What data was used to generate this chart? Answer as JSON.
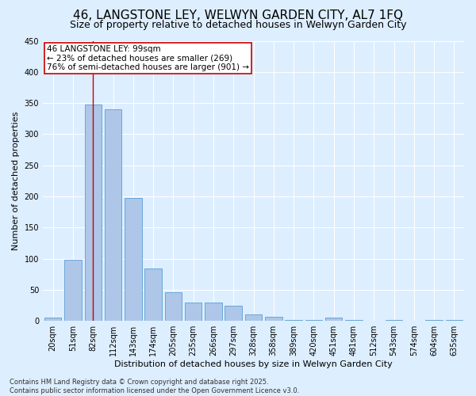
{
  "title": "46, LANGSTONE LEY, WELWYN GARDEN CITY, AL7 1FQ",
  "subtitle": "Size of property relative to detached houses in Welwyn Garden City",
  "xlabel": "Distribution of detached houses by size in Welwyn Garden City",
  "ylabel": "Number of detached properties",
  "categories": [
    "20sqm",
    "51sqm",
    "82sqm",
    "112sqm",
    "143sqm",
    "174sqm",
    "205sqm",
    "235sqm",
    "266sqm",
    "297sqm",
    "328sqm",
    "358sqm",
    "389sqm",
    "420sqm",
    "451sqm",
    "481sqm",
    "512sqm",
    "543sqm",
    "574sqm",
    "604sqm",
    "635sqm"
  ],
  "values": [
    5,
    98,
    348,
    340,
    197,
    84,
    46,
    29,
    29,
    24,
    10,
    7,
    2,
    2,
    5,
    1,
    0,
    2,
    0,
    1,
    1
  ],
  "bar_color": "#aec6e8",
  "bar_edge_color": "#5a9fd4",
  "background_color": "#ddeeff",
  "grid_color": "#ffffff",
  "annotation_text_line1": "46 LANGSTONE LEY: 99sqm",
  "annotation_text_line2": "← 23% of detached houses are smaller (269)",
  "annotation_text_line3": "76% of semi-detached houses are larger (901) →",
  "annotation_box_color": "#ffffff",
  "annotation_box_edge_color": "#cc0000",
  "red_line_color": "#cc0000",
  "ylim": [
    0,
    450
  ],
  "yticks": [
    0,
    50,
    100,
    150,
    200,
    250,
    300,
    350,
    400,
    450
  ],
  "footer": "Contains HM Land Registry data © Crown copyright and database right 2025.\nContains public sector information licensed under the Open Government Licence v3.0.",
  "title_fontsize": 11,
  "subtitle_fontsize": 9,
  "axis_label_fontsize": 8,
  "tick_fontsize": 7,
  "annotation_fontsize": 7.5,
  "footer_fontsize": 6
}
